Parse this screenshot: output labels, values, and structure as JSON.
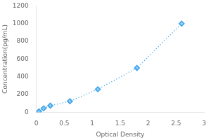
{
  "chart_data": {
    "type": "line",
    "xlabel": "Optical Density",
    "ylabel": "Concentration(pg/mL)",
    "x": [
      0.047,
      0.13,
      0.25,
      0.6,
      1.1,
      1.8,
      2.6
    ],
    "values": [
      10,
      45,
      75,
      125,
      260,
      500,
      1000
    ],
    "xlim": [
      0,
      3
    ],
    "ylim": [
      0,
      1200
    ],
    "xticks": [
      0,
      0.5,
      1,
      1.5,
      2,
      2.5,
      3
    ],
    "yticks": [
      0,
      200,
      400,
      600,
      800,
      1000,
      1200
    ],
    "marker": "diamond",
    "line_style": "dotted",
    "grid": false
  }
}
